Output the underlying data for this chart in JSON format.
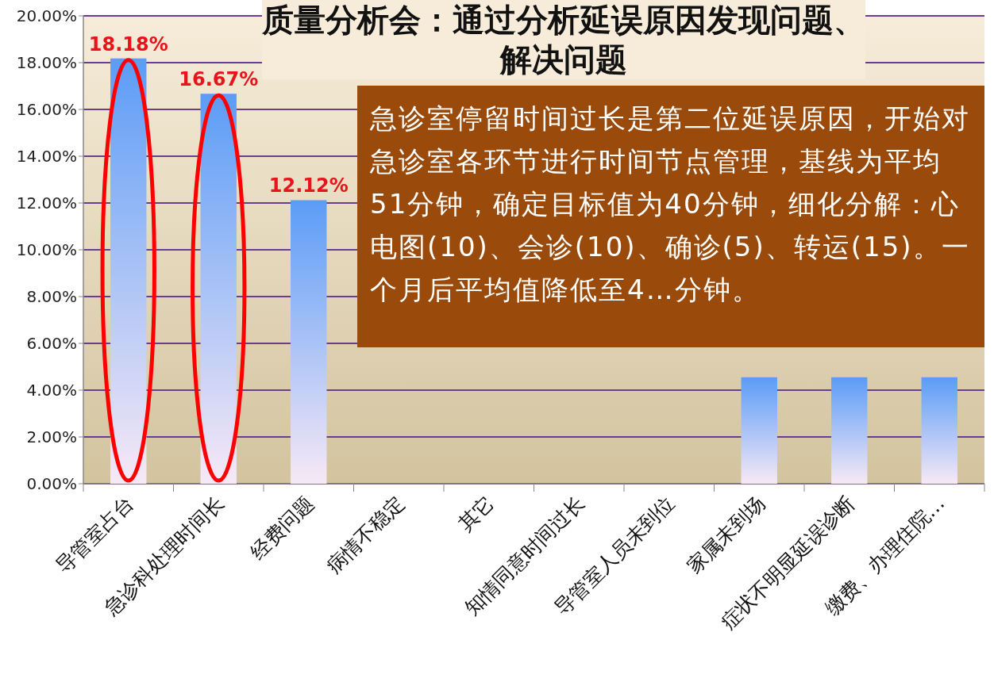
{
  "chart_data": {
    "type": "bar",
    "title": "质量分析会：通过分析延误原因发现问题、解决问题",
    "categories": [
      "导管室占台",
      "急诊科处理时间长",
      "经费问题",
      "病情不稳定",
      "其它",
      "知情同意时间过长",
      "导管室人员未到位",
      "家属未到场",
      "症状不明显延误诊断",
      "缴费、办理住院…"
    ],
    "values": [
      18.18,
      16.67,
      12.12,
      null,
      null,
      null,
      null,
      4.55,
      4.55,
      4.55
    ],
    "color": "#5b9cf6",
    "value_labels": [
      "18.18%",
      "16.67%",
      "12.12%",
      null,
      null,
      null,
      null,
      null,
      null,
      null
    ],
    "ylim": [
      0,
      20
    ],
    "yticks": [
      {
        "value": 0,
        "label": "0.00%"
      },
      {
        "value": 2,
        "label": "2.00%"
      },
      {
        "value": 4,
        "label": "4.00%"
      },
      {
        "value": 6,
        "label": "6.00%"
      },
      {
        "value": 8,
        "label": "8.00%"
      },
      {
        "value": 10,
        "label": "10.00%"
      },
      {
        "value": 12,
        "label": "12.00%"
      },
      {
        "value": 14,
        "label": "14.00%"
      },
      {
        "value": 16,
        "label": "16.00%"
      },
      {
        "value": 18,
        "label": "18.00%"
      },
      {
        "value": 20,
        "label": "20.00%"
      }
    ],
    "grid": "y",
    "annotations": [
      "急诊室停留时间过长是第二位延误原因，开始对急诊室各环节进行时间节点管理，基线为平均51分钟，确定目标值为40分钟，细化分解：心电图(10)、会诊(10)、确诊(5)、转运(15)。一个月后平均值降低至4…分钟。"
    ]
  }
}
